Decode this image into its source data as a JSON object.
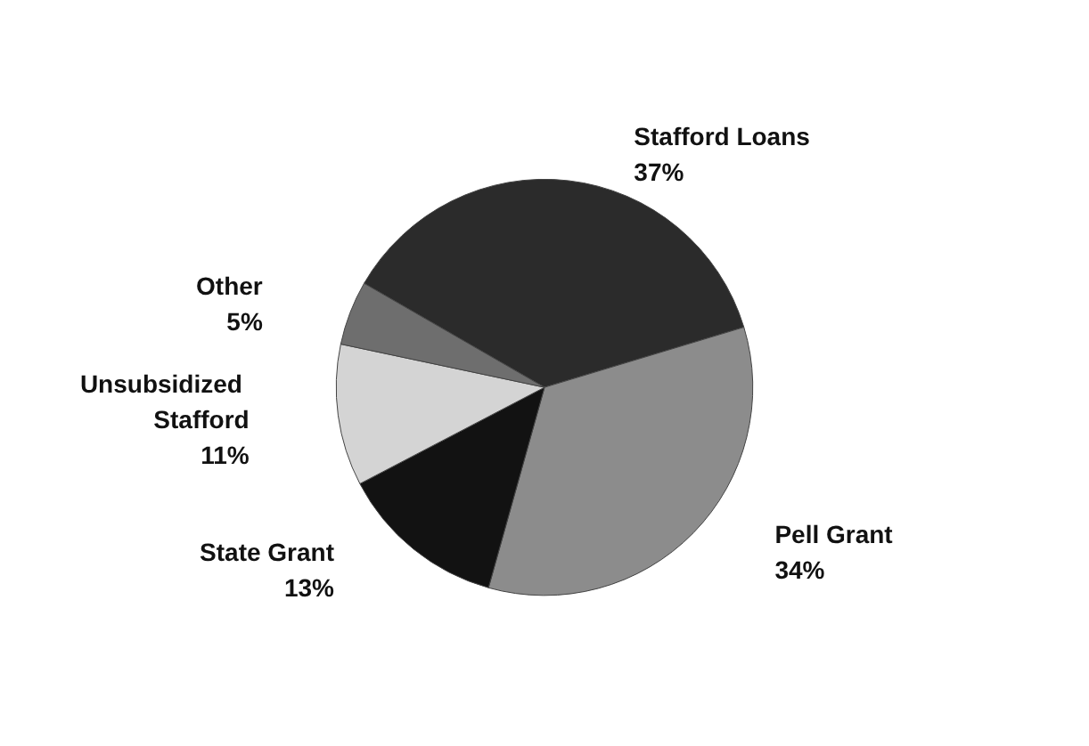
{
  "chart_data": {
    "type": "pie",
    "categories": [
      "Stafford Loans",
      "Pell Grant",
      "State Grant",
      "Unsubsidized Stafford",
      "Other"
    ],
    "values": [
      37,
      34,
      13,
      11,
      5
    ],
    "value_labels": [
      "37%",
      "34%",
      "13%",
      "11%",
      "5%"
    ],
    "colors": [
      "#2b2b2b",
      "#8c8c8c",
      "#121212",
      "#d4d4d4",
      "#6e6e6e"
    ]
  }
}
